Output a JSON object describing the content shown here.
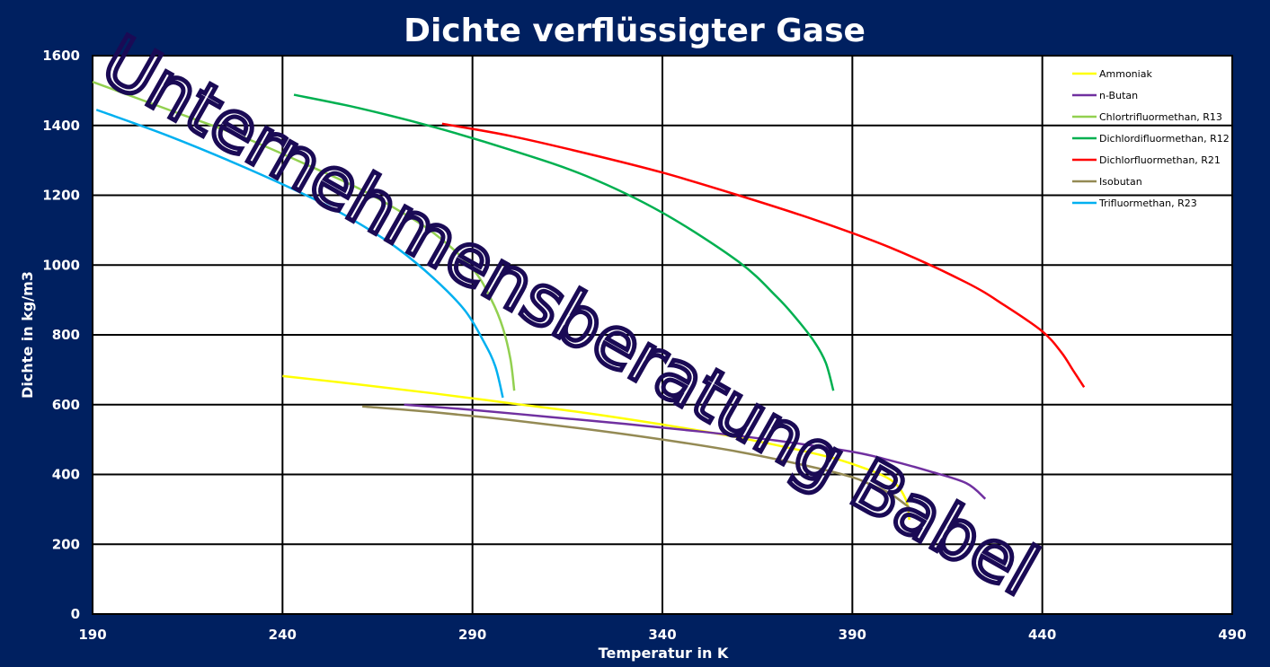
{
  "chart_data": {
    "type": "line",
    "title": "Dichte verflüssigter Gase",
    "xlabel": "Temperatur in K",
    "ylabel": "Dichte in kg/m3",
    "xlim": [
      190,
      490
    ],
    "ylim": [
      0,
      1600
    ],
    "xticks": [
      "190",
      "240",
      "290",
      "340",
      "390",
      "440",
      "490"
    ],
    "yticks": [
      "0",
      "200",
      "400",
      "600",
      "800",
      "1000",
      "1200",
      "1400",
      "1600"
    ],
    "grid": true,
    "legend_position": "top-right",
    "watermark": "Unternehmensberatung Babel",
    "series": [
      {
        "name": "Ammoniak",
        "color": "#ffff00",
        "x": [
          240,
          260,
          280,
          300,
          320,
          340,
          360,
          380,
          390,
          400,
          404,
          405
        ],
        "y": [
          682,
          658,
          632,
          604,
          576,
          543,
          506,
          460,
          430,
          385,
          330,
          270
        ]
      },
      {
        "name": "n-Butan",
        "color": "#7030a0",
        "x": [
          272,
          290,
          310,
          330,
          350,
          370,
          390,
          400,
          410,
          420,
          425
        ],
        "y": [
          600,
          585,
          565,
          545,
          523,
          497,
          465,
          440,
          410,
          375,
          330
        ]
      },
      {
        "name": "Chlortrifluormethan, R13",
        "color": "#92d050",
        "x": [
          190,
          210,
          230,
          250,
          260,
          270,
          280,
          290,
          295,
          298,
          300,
          301
        ],
        "y": [
          1525,
          1445,
          1365,
          1270,
          1220,
          1160,
          1090,
          990,
          900,
          820,
          730,
          640
        ]
      },
      {
        "name": "Dichlordifluormethan, R12",
        "color": "#00b050",
        "x": [
          243,
          260,
          280,
          300,
          320,
          340,
          360,
          370,
          375,
          380,
          383,
          385
        ],
        "y": [
          1488,
          1450,
          1395,
          1330,
          1255,
          1150,
          1010,
          910,
          850,
          780,
          720,
          640
        ]
      },
      {
        "name": "Dichlorfluormethan, R21",
        "color": "#ff0000",
        "x": [
          282,
          300,
          320,
          340,
          360,
          380,
          400,
          420,
          430,
          440,
          445,
          448,
          451
        ],
        "y": [
          1405,
          1370,
          1320,
          1265,
          1200,
          1130,
          1050,
          950,
          885,
          810,
          750,
          700,
          650
        ]
      },
      {
        "name": "Isobutan",
        "color": "#948a54",
        "x": [
          261,
          280,
          300,
          320,
          340,
          360,
          380,
          390,
          395,
          400,
          405
        ],
        "y": [
          595,
          578,
          556,
          530,
          500,
          465,
          420,
          392,
          370,
          345,
          305
        ]
      },
      {
        "name": "Trifluormethan, R23",
        "color": "#00b0f0",
        "x": [
          191,
          210,
          230,
          250,
          260,
          270,
          280,
          288,
          293,
          296,
          298
        ],
        "y": [
          1445,
          1370,
          1280,
          1180,
          1120,
          1050,
          960,
          870,
          780,
          710,
          620
        ]
      }
    ]
  }
}
